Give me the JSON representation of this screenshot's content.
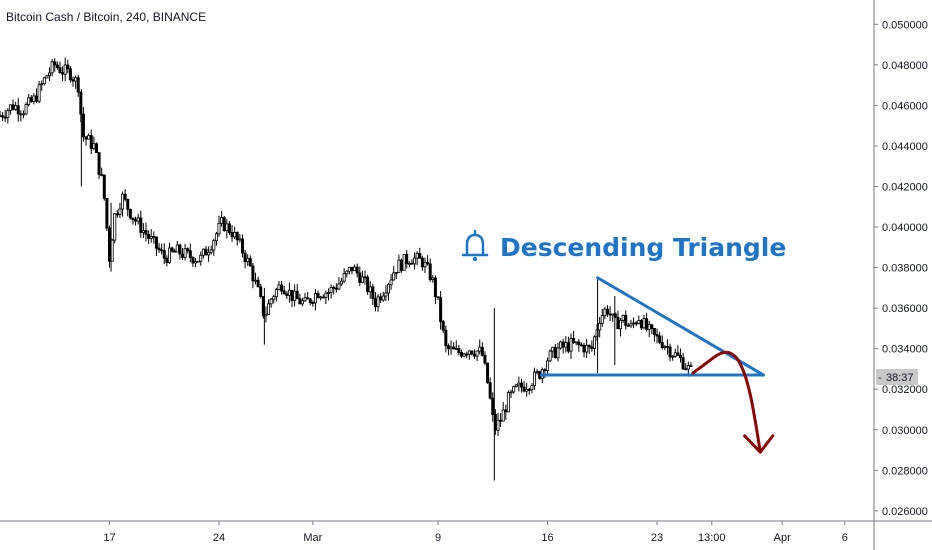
{
  "header": {
    "symbol_title": "Bitcoin Cash / Bitcoin, 240, BINANCE"
  },
  "annotation": {
    "text": "Descending Triangle",
    "icon": "bell-icon"
  },
  "price_badge": {
    "countdown": "38:37",
    "value": 0.0326
  },
  "colors": {
    "candle": "#000000",
    "triangle": "#1e74c8",
    "projection": "#8b0000",
    "annotation": "#1e74c8",
    "axis": "#787b86",
    "badge_bg": "#c8c8c8"
  },
  "chart_data": {
    "type": "candlestick",
    "title": "Bitcoin Cash / Bitcoin, 240, BINANCE",
    "ylim": [
      0.0255,
      0.0512
    ],
    "xlim": [
      0,
      50.5
    ],
    "x_unit": "days since Feb 10",
    "y_ticks": [
      "0.050000",
      "0.048000",
      "0.046000",
      "0.044000",
      "0.042000",
      "0.040000",
      "0.038000",
      "0.036000",
      "0.034000",
      "0.032000",
      "0.030000",
      "0.028000",
      "0.026000"
    ],
    "y_tick_values": [
      0.05,
      0.048,
      0.046,
      0.044,
      0.042,
      0.04,
      0.038,
      0.036,
      0.034,
      0.032,
      0.03,
      0.028,
      0.026
    ],
    "x_ticks": [
      {
        "label": "17",
        "x": 7
      },
      {
        "label": "24",
        "x": 14
      },
      {
        "label": "Mar",
        "x": 20
      },
      {
        "label": "9",
        "x": 28
      },
      {
        "label": "16",
        "x": 35
      },
      {
        "label": "23",
        "x": 42
      },
      {
        "label": "13:00",
        "x": 45.5
      },
      {
        "label": "Apr",
        "x": 50
      },
      {
        "label": "6",
        "x": 54
      }
    ],
    "price_path": [
      [
        0,
        0.0455
      ],
      [
        0.8,
        0.046
      ],
      [
        1.5,
        0.0458
      ],
      [
        2.2,
        0.0463
      ],
      [
        3.0,
        0.0475
      ],
      [
        3.5,
        0.048
      ],
      [
        4.0,
        0.0477
      ],
      [
        4.5,
        0.0476
      ],
      [
        5.0,
        0.047
      ],
      [
        5.3,
        0.0445
      ],
      [
        6.0,
        0.044
      ],
      [
        6.6,
        0.042
      ],
      [
        7.0,
        0.0385
      ],
      [
        7.3,
        0.0405
      ],
      [
        7.8,
        0.0415
      ],
      [
        8.5,
        0.0405
      ],
      [
        9.0,
        0.04
      ],
      [
        9.8,
        0.0392
      ],
      [
        10.5,
        0.0385
      ],
      [
        11.3,
        0.0388
      ],
      [
        12.0,
        0.0386
      ],
      [
        12.8,
        0.0384
      ],
      [
        13.5,
        0.0392
      ],
      [
        14.2,
        0.0402
      ],
      [
        14.8,
        0.0398
      ],
      [
        15.4,
        0.039
      ],
      [
        16.0,
        0.038
      ],
      [
        16.5,
        0.0368
      ],
      [
        16.9,
        0.0356
      ],
      [
        17.4,
        0.0366
      ],
      [
        18.0,
        0.0372
      ],
      [
        18.8,
        0.0365
      ],
      [
        19.5,
        0.0362
      ],
      [
        20.3,
        0.0368
      ],
      [
        21.0,
        0.0368
      ],
      [
        21.8,
        0.0373
      ],
      [
        22.5,
        0.038
      ],
      [
        23.0,
        0.0376
      ],
      [
        23.5,
        0.037
      ],
      [
        24.0,
        0.0363
      ],
      [
        24.6,
        0.037
      ],
      [
        25.3,
        0.038
      ],
      [
        26.2,
        0.0385
      ],
      [
        27.0,
        0.0383
      ],
      [
        27.6,
        0.0375
      ],
      [
        28.0,
        0.0362
      ],
      [
        28.5,
        0.034
      ],
      [
        29.2,
        0.0338
      ],
      [
        30.0,
        0.034
      ],
      [
        30.8,
        0.0338
      ],
      [
        31.2,
        0.0322
      ],
      [
        31.6,
        0.03
      ],
      [
        32.0,
        0.0305
      ],
      [
        32.5,
        0.0315
      ],
      [
        33.0,
        0.032
      ],
      [
        33.8,
        0.0323
      ],
      [
        34.5,
        0.0328
      ],
      [
        35.0,
        0.0335
      ],
      [
        35.7,
        0.034
      ],
      [
        36.5,
        0.0342
      ],
      [
        37.3,
        0.0341
      ],
      [
        37.8,
        0.0339
      ],
      [
        38.3,
        0.0355
      ],
      [
        38.8,
        0.036
      ],
      [
        39.3,
        0.0352
      ],
      [
        39.8,
        0.0355
      ],
      [
        40.3,
        0.035
      ],
      [
        40.8,
        0.0356
      ],
      [
        41.3,
        0.035
      ],
      [
        41.8,
        0.0346
      ],
      [
        42.4,
        0.0343
      ],
      [
        43.0,
        0.0338
      ],
      [
        43.6,
        0.0334
      ],
      [
        44.0,
        0.033
      ],
      [
        44.3,
        0.0328
      ]
    ],
    "spikes": [
      {
        "x": 5.2,
        "low": 0.042,
        "high": 0.0468
      },
      {
        "x": 7.1,
        "low": 0.0378,
        "high": 0.0412
      },
      {
        "x": 16.9,
        "low": 0.0342,
        "high": 0.037
      },
      {
        "x": 31.6,
        "low": 0.0275,
        "high": 0.036
      },
      {
        "x": 38.2,
        "low": 0.0328,
        "high": 0.0375
      },
      {
        "x": 39.3,
        "low": 0.0332,
        "high": 0.0366
      }
    ],
    "triangle": {
      "upper": [
        [
          38.2,
          0.0375
        ],
        [
          48.8,
          0.0327
        ]
      ],
      "lower": [
        [
          34.6,
          0.0327
        ],
        [
          48.8,
          0.0327
        ]
      ]
    },
    "projection": [
      [
        44.3,
        0.0328
      ],
      [
        45.0,
        0.0332
      ],
      [
        46.2,
        0.0339
      ],
      [
        47.0,
        0.0337
      ],
      [
        47.5,
        0.033
      ],
      [
        47.9,
        0.032
      ],
      [
        48.2,
        0.0308
      ],
      [
        48.5,
        0.0294
      ],
      [
        48.6,
        0.0289
      ]
    ],
    "arrowhead": [
      [
        47.6,
        0.0297
      ],
      [
        48.6,
        0.0289
      ],
      [
        49.4,
        0.0297
      ]
    ]
  }
}
